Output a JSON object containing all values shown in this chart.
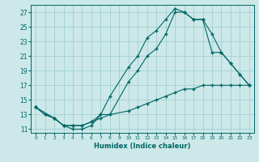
{
  "title": "",
  "xlabel": "Humidex (Indice chaleur)",
  "bg_color": "#cce8e8",
  "grid_color": "#99cccc",
  "line_color": "#006666",
  "ylim": [
    10.5,
    28
  ],
  "xlim": [
    -0.5,
    23.5
  ],
  "yticks": [
    11,
    13,
    15,
    17,
    19,
    21,
    23,
    25,
    27
  ],
  "xticks": [
    0,
    1,
    2,
    3,
    4,
    5,
    6,
    7,
    8,
    9,
    10,
    11,
    12,
    13,
    14,
    15,
    16,
    17,
    18,
    19,
    20,
    21,
    22,
    23
  ],
  "line1_x": [
    0,
    1,
    2,
    3,
    4,
    5,
    6,
    7,
    8,
    10,
    11,
    12,
    13,
    14,
    15,
    16,
    17,
    18,
    19,
    20,
    21,
    22,
    23
  ],
  "line1_y": [
    14,
    13,
    12.5,
    11.5,
    11,
    11,
    11.5,
    13,
    15.5,
    19.5,
    21,
    23.5,
    24.5,
    26,
    27.5,
    27,
    26,
    26,
    24,
    21.5,
    20,
    18.5,
    17
  ],
  "line2_x": [
    0,
    2,
    3,
    4,
    5,
    6,
    7,
    8,
    10,
    11,
    12,
    13,
    14,
    15,
    16,
    17,
    18,
    19,
    20,
    21,
    22,
    23
  ],
  "line2_y": [
    14,
    12.5,
    11.5,
    11.5,
    11.5,
    12,
    13,
    13,
    17.5,
    19,
    21,
    22,
    24,
    27,
    27,
    26,
    26,
    21.5,
    21.5,
    20,
    18.5,
    17
  ],
  "line3_x": [
    0,
    1,
    2,
    3,
    4,
    5,
    6,
    7,
    8,
    10,
    11,
    12,
    13,
    14,
    15,
    16,
    17,
    18,
    19,
    20,
    21,
    22,
    23
  ],
  "line3_y": [
    14,
    13,
    12.5,
    11.5,
    11.5,
    11.5,
    12,
    12.5,
    13,
    13.5,
    14,
    14.5,
    15,
    15.5,
    16,
    16.5,
    16.5,
    17,
    17,
    17,
    17,
    17,
    17
  ]
}
